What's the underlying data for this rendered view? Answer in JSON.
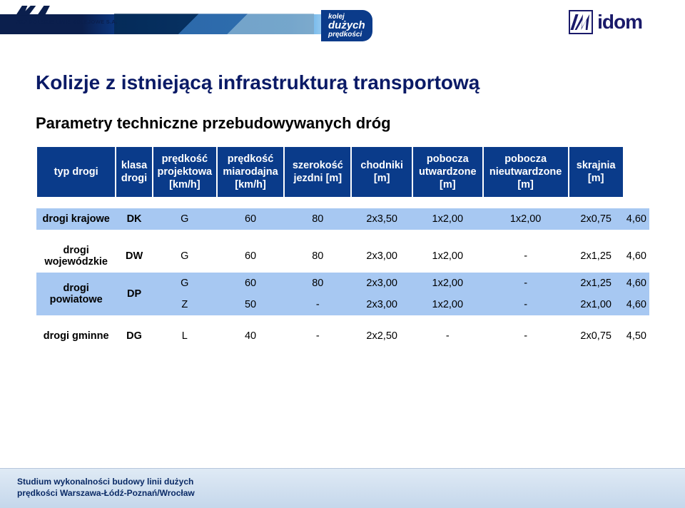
{
  "colors": {
    "title": "#0a1a66",
    "header_bg": "#0a3b8a",
    "header_fg": "#ffffff",
    "row_tint": "#a7c8f2",
    "row_plain": "#ffffff",
    "footer_grad_top": "#dfeaf5",
    "footer_grad_bot": "#c5d7eb",
    "idom": "#1a1a6a"
  },
  "fontsize": {
    "title": 28,
    "subtitle": 22,
    "table": 14.5,
    "footer": 12
  },
  "header": {
    "pkp_text": "PKP POLSKIE LINIE KOLEJOWE S.A.",
    "kdp": {
      "line1": "kolej",
      "line2": "dużych",
      "line3": "prędkości"
    },
    "idom": "idom"
  },
  "title": "Kolizje z istniejącą infrastrukturą transportową",
  "subtitle": "Parametry techniczne przebudowywanych dróg",
  "table": {
    "columns": [
      "typ drogi",
      "klasa drogi",
      "prędkość projektowa [km/h]",
      "prędkość miarodajna [km/h]",
      "szerokość jezdni [m]",
      "chodniki [m]",
      "pobocza utwardzone [m]",
      "pobocza nieutwardzone [m]",
      "skrajnia [m]"
    ],
    "groups": [
      {
        "label": "drogi krajowe",
        "code": "DK",
        "rows": [
          {
            "klasa": "G",
            "v_proj": "60",
            "v_miar": "80",
            "jezdnia": "2x3,50",
            "chodnik": "1x2,00",
            "pob_utw": "1x2,00",
            "pob_nutw": "2x0,75",
            "skrajnia": "4,60"
          }
        ],
        "tint": "#a7c8f2"
      },
      {
        "label": "drogi wojewódzkie",
        "code": "DW",
        "rows": [
          {
            "klasa": "G",
            "v_proj": "60",
            "v_miar": "80",
            "jezdnia": "2x3,00",
            "chodnik": "1x2,00",
            "pob_utw": "-",
            "pob_nutw": "2x1,25",
            "skrajnia": "4,60"
          }
        ],
        "tint": "#ffffff"
      },
      {
        "label": "drogi powiatowe",
        "code": "DP",
        "rows": [
          {
            "klasa": "G",
            "v_proj": "60",
            "v_miar": "80",
            "jezdnia": "2x3,00",
            "chodnik": "1x2,00",
            "pob_utw": "-",
            "pob_nutw": "2x1,25",
            "skrajnia": "4,60"
          },
          {
            "klasa": "Z",
            "v_proj": "50",
            "v_miar": "-",
            "jezdnia": "2x3,00",
            "chodnik": "1x2,00",
            "pob_utw": "-",
            "pob_nutw": "2x1,00",
            "skrajnia": "4,60"
          }
        ],
        "tint": "#a7c8f2"
      },
      {
        "label": "drogi gminne",
        "code": "DG",
        "rows": [
          {
            "klasa": "L",
            "v_proj": "40",
            "v_miar": "-",
            "jezdnia": "2x2,50",
            "chodnik": "-",
            "pob_utw": "-",
            "pob_nutw": "2x0,75",
            "skrajnia": "4,50"
          }
        ],
        "tint": "#ffffff"
      }
    ]
  },
  "footer": {
    "line1": "Studium wykonalności budowy linii dużych",
    "line2": "prędkości Warszawa-Łódź-Poznań/Wrocław"
  }
}
